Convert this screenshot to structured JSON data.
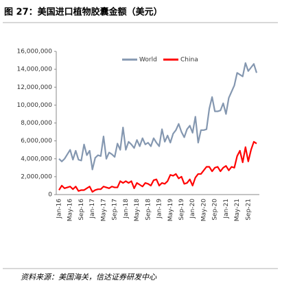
{
  "chart_data": {
    "type": "line",
    "title": "图 27：美国进口植物胶囊金额（美元）",
    "source": "资料来源：美国海关，信达证券研发中心",
    "categories": [
      "Jan-16",
      null,
      null,
      null,
      "May-16",
      null,
      null,
      null,
      "Sep-16",
      null,
      null,
      null,
      "Jan-17",
      null,
      null,
      null,
      "May-17",
      null,
      null,
      null,
      "Sep-17",
      null,
      null,
      null,
      "Jan-18",
      null,
      null,
      null,
      "May-18",
      null,
      null,
      null,
      "Sep-18",
      null,
      null,
      null,
      "Jan-19",
      null,
      null,
      null,
      "May-19",
      null,
      null,
      null,
      "Sep-19",
      null,
      null,
      null,
      "Jan-20",
      null,
      null,
      null,
      "May-20",
      null,
      null,
      null,
      "Sep-20",
      null,
      null,
      null,
      "Jan-21",
      null,
      null,
      null,
      "May-21",
      null,
      null,
      null,
      "Sep-21",
      null,
      null,
      null
    ],
    "series": [
      {
        "name": "World",
        "color": "#8497b0",
        "values": [
          4000000,
          3700000,
          4000000,
          4500000,
          5000000,
          3900000,
          4900000,
          3900000,
          3800000,
          5600000,
          4400000,
          4900000,
          2800000,
          4100000,
          4400000,
          4300000,
          6500000,
          4000000,
          4700000,
          4500000,
          4200000,
          5700000,
          5000000,
          7500000,
          5000000,
          5900000,
          5600000,
          5200000,
          6100000,
          5400000,
          6300000,
          5600000,
          5800000,
          5400000,
          6300000,
          5800000,
          5400000,
          7300000,
          5900000,
          6600000,
          5800000,
          6800000,
          7200000,
          7900000,
          7000000,
          6400000,
          7300000,
          7700000,
          6900000,
          8700000,
          5800000,
          7200000,
          7200000,
          7300000,
          9600000,
          10900000,
          9300000,
          9300000,
          9400000,
          10200000,
          9000000,
          10800000,
          11500000,
          12200000,
          13600000,
          13400000,
          13200000,
          14700000,
          13800000,
          14200000,
          14600000,
          13600000
        ]
      },
      {
        "name": "China",
        "color": "#ff0000",
        "values": [
          500000,
          1000000,
          700000,
          800000,
          900000,
          600000,
          900000,
          400000,
          500000,
          500000,
          700000,
          900000,
          300000,
          500000,
          600000,
          600000,
          900000,
          800000,
          700000,
          900000,
          800000,
          800000,
          1500000,
          1300000,
          1500000,
          1300000,
          1500000,
          700000,
          1300000,
          1100000,
          900000,
          1300000,
          1200000,
          1000000,
          1600000,
          1700000,
          1000000,
          1300000,
          1200000,
          1500000,
          2200000,
          2100000,
          2300000,
          1800000,
          2000000,
          1200000,
          1300000,
          1700000,
          1000000,
          1900000,
          2300000,
          2300000,
          2700000,
          3100000,
          3100000,
          2600000,
          3000000,
          3100000,
          2600000,
          3000000,
          3200000,
          2700000,
          3100000,
          3000000,
          4300000,
          4900000,
          3600000,
          5300000,
          3700000,
          5000000,
          5900000,
          5700000
        ]
      }
    ],
    "ylim": [
      0,
      16000000
    ],
    "yticks": [
      0,
      {
        "value": 2000000,
        "label": "2,000,000"
      },
      {
        "value": 4000000,
        "label": "4,000,000"
      },
      {
        "value": 6000000,
        "label": "6,000,000"
      },
      {
        "value": 8000000,
        "label": "8,000,000"
      },
      {
        "value": 10000000,
        "label": "10,000,000"
      },
      {
        "value": 12000000,
        "label": "12,000,000"
      },
      {
        "value": 14000000,
        "label": "14,000,000"
      },
      {
        "value": 16000000,
        "label": "16,000,000"
      }
    ],
    "legend": "top"
  }
}
